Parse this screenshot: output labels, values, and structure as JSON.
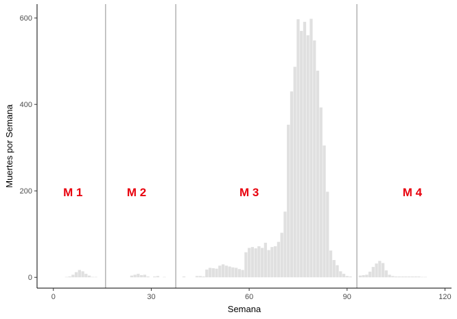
{
  "chart_data": {
    "type": "bar",
    "title": "",
    "xlabel": "Semana",
    "ylabel": "Muertes por Semana",
    "xlim": [
      -5,
      122
    ],
    "ylim": [
      -25,
      632
    ],
    "x_ticks": [
      0,
      30,
      60,
      90,
      120
    ],
    "y_ticks": [
      0,
      200,
      400,
      600
    ],
    "grid": false,
    "bar_color": "#e0e0e0",
    "divider_color": "#8c8c8c",
    "phase_label_color": "#e8000d",
    "x": [
      1,
      2,
      3,
      4,
      5,
      6,
      7,
      8,
      9,
      10,
      11,
      12,
      13,
      14,
      15,
      16,
      17,
      18,
      19,
      20,
      21,
      22,
      23,
      24,
      25,
      26,
      27,
      28,
      29,
      30,
      31,
      32,
      33,
      34,
      35,
      36,
      37,
      38,
      39,
      40,
      41,
      42,
      43,
      44,
      45,
      46,
      47,
      48,
      49,
      50,
      51,
      52,
      53,
      54,
      55,
      56,
      57,
      58,
      59,
      60,
      61,
      62,
      63,
      64,
      65,
      66,
      67,
      68,
      69,
      70,
      71,
      72,
      73,
      74,
      75,
      76,
      77,
      78,
      79,
      80,
      81,
      82,
      83,
      84,
      85,
      86,
      87,
      88,
      89,
      90,
      91,
      92,
      93,
      94,
      95,
      96,
      97,
      98,
      99,
      100,
      101,
      102,
      103,
      104,
      105,
      106,
      107,
      108,
      109,
      110,
      111,
      112,
      113,
      114,
      115
    ],
    "values": [
      0,
      0,
      0,
      1,
      2,
      6,
      12,
      17,
      14,
      8,
      4,
      1,
      1,
      0,
      0,
      0,
      0,
      0,
      0,
      0,
      0,
      0,
      0,
      4,
      6,
      8,
      5,
      6,
      2,
      0,
      2,
      3,
      0,
      1,
      0,
      0,
      0,
      0,
      0,
      2,
      0,
      0,
      0,
      3,
      3,
      2,
      18,
      22,
      21,
      20,
      27,
      30,
      27,
      25,
      23,
      22,
      19,
      17,
      58,
      68,
      70,
      67,
      72,
      68,
      80,
      63,
      70,
      72,
      82,
      103,
      152,
      353,
      430,
      487,
      597,
      570,
      591,
      560,
      598,
      548,
      478,
      393,
      305,
      198,
      62,
      40,
      28,
      14,
      8,
      3,
      2,
      0,
      0,
      4,
      5,
      6,
      13,
      24,
      32,
      38,
      33,
      16,
      6,
      3,
      2,
      2,
      2,
      2,
      2,
      2,
      2,
      2,
      1,
      1,
      0
    ],
    "dividers": [
      16,
      37.5,
      93
    ],
    "phases": [
      {
        "label": "M 1",
        "x": 6,
        "y": 197
      },
      {
        "label": "M 2",
        "x": 25.5,
        "y": 197
      },
      {
        "label": "M 3",
        "x": 60,
        "y": 197
      },
      {
        "label": "M 4",
        "x": 110,
        "y": 197
      }
    ]
  }
}
